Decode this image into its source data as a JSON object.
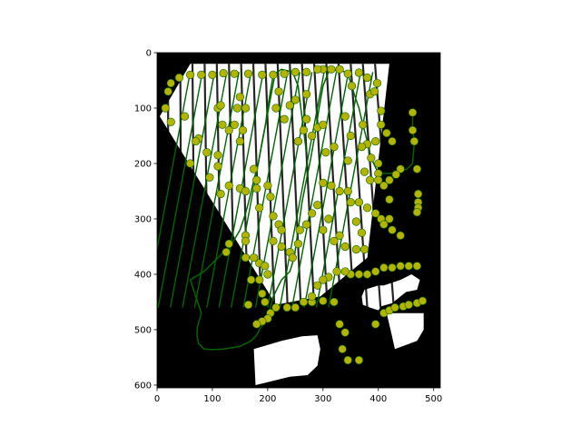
{
  "chart_data": {
    "type": "scatter",
    "title": "",
    "xlabel": "",
    "ylabel": "",
    "xlim": [
      0,
      512
    ],
    "ylim": [
      605,
      0
    ],
    "x_ticks": [
      0,
      100,
      200,
      300,
      400,
      500
    ],
    "y_ticks": [
      0,
      100,
      200,
      300,
      400,
      500,
      600
    ],
    "background_color": "#000000",
    "mask_color": "#ffffff",
    "path_color": "#006400",
    "marker_color": "#b4b400",
    "grid": false,
    "legend": "none",
    "mask_regions": [
      [
        [
          60,
          20
        ],
        [
          420,
          20
        ],
        [
          380,
          370
        ],
        [
          295,
          440
        ],
        [
          215,
          455
        ],
        [
          5,
          115
        ]
      ],
      [
        [
          175,
          535
        ],
        [
          225,
          520
        ],
        [
          262,
          512
        ],
        [
          290,
          510
        ],
        [
          295,
          535
        ],
        [
          290,
          565
        ],
        [
          272,
          582
        ],
        [
          240,
          585
        ],
        [
          178,
          600
        ]
      ],
      [
        [
          415,
          470
        ],
        [
          482,
          470
        ],
        [
          482,
          500
        ],
        [
          470,
          520
        ],
        [
          430,
          535
        ],
        [
          422,
          500
        ]
      ],
      [
        [
          370,
          440
        ],
        [
          375,
          428
        ],
        [
          400,
          420
        ],
        [
          410,
          420
        ],
        [
          440,
          410
        ],
        [
          460,
          400
        ],
        [
          475,
          410
        ],
        [
          470,
          428
        ],
        [
          450,
          432
        ],
        [
          440,
          440
        ],
        [
          425,
          452
        ],
        [
          405,
          458
        ],
        [
          400,
          465
        ],
        [
          385,
          460
        ],
        [
          372,
          455
        ]
      ]
    ],
    "path": [
      [
        462,
        108
      ],
      [
        462,
        140
      ],
      [
        465,
        160
      ],
      [
        462,
        200
      ],
      [
        452,
        210
      ],
      [
        435,
        215
      ],
      [
        420,
        218
      ],
      [
        400,
        218
      ],
      [
        387,
        190
      ],
      [
        380,
        160
      ],
      [
        372,
        130
      ],
      [
        365,
        100
      ],
      [
        358,
        80
      ],
      [
        352,
        60
      ],
      [
        345,
        38
      ],
      [
        330,
        30
      ],
      [
        310,
        35
      ],
      [
        300,
        60
      ],
      [
        293,
        100
      ],
      [
        285,
        150
      ],
      [
        278,
        190
      ],
      [
        270,
        230
      ],
      [
        262,
        270
      ],
      [
        255,
        320
      ],
      [
        248,
        370
      ],
      [
        240,
        395
      ],
      [
        225,
        410
      ],
      [
        210,
        440
      ],
      [
        205,
        460
      ],
      [
        200,
        475
      ],
      [
        192,
        490
      ],
      [
        185,
        500
      ],
      [
        180,
        510
      ],
      [
        175,
        515
      ],
      [
        170,
        520
      ],
      [
        160,
        525
      ],
      [
        150,
        530
      ],
      [
        120,
        535
      ],
      [
        100,
        536
      ],
      [
        85,
        535
      ],
      [
        75,
        525
      ],
      [
        72,
        510
      ],
      [
        73,
        495
      ],
      [
        80,
        470
      ],
      [
        70,
        440
      ],
      [
        60,
        410
      ],
      [
        85,
        395
      ],
      [
        100,
        380
      ],
      [
        120,
        360
      ],
      [
        135,
        345
      ],
      [
        150,
        320
      ],
      [
        160,
        290
      ],
      [
        168,
        260
      ],
      [
        175,
        230
      ],
      [
        183,
        200
      ],
      [
        190,
        160
      ],
      [
        196,
        130
      ],
      [
        200,
        100
      ],
      [
        205,
        70
      ],
      [
        210,
        40
      ],
      [
        225,
        30
      ],
      [
        245,
        35
      ],
      [
        255,
        60
      ],
      [
        260,
        100
      ],
      [
        265,
        140
      ],
      [
        270,
        180
      ]
    ],
    "waypoints": [
      [
        462,
        108
      ],
      [
        462,
        140
      ],
      [
        465,
        160
      ],
      [
        470,
        210
      ],
      [
        472,
        255
      ],
      [
        472,
        270
      ],
      [
        472,
        280
      ],
      [
        470,
        288
      ],
      [
        440,
        210
      ],
      [
        432,
        220
      ],
      [
        420,
        230
      ],
      [
        400,
        218
      ],
      [
        387,
        190
      ],
      [
        395,
        160
      ],
      [
        380,
        165
      ],
      [
        372,
        130
      ],
      [
        405,
        105
      ],
      [
        385,
        75
      ],
      [
        393,
        70
      ],
      [
        398,
        55
      ],
      [
        380,
        45
      ],
      [
        365,
        36
      ],
      [
        352,
        60
      ],
      [
        345,
        38
      ],
      [
        330,
        30
      ],
      [
        315,
        30
      ],
      [
        300,
        30
      ],
      [
        290,
        30
      ],
      [
        270,
        35
      ],
      [
        250,
        35
      ],
      [
        230,
        38
      ],
      [
        210,
        40
      ],
      [
        190,
        40
      ],
      [
        165,
        38
      ],
      [
        140,
        38
      ],
      [
        120,
        37
      ],
      [
        100,
        40
      ],
      [
        80,
        40
      ],
      [
        60,
        40
      ],
      [
        40,
        45
      ],
      [
        25,
        55
      ],
      [
        20,
        70
      ],
      [
        15,
        100
      ],
      [
        25,
        125
      ],
      [
        50,
        115
      ],
      [
        75,
        155
      ],
      [
        70,
        160
      ],
      [
        60,
        200
      ],
      [
        90,
        180
      ],
      [
        110,
        185
      ],
      [
        110,
        205
      ],
      [
        95,
        225
      ],
      [
        115,
        255
      ],
      [
        130,
        240
      ],
      [
        150,
        245
      ],
      [
        160,
        250
      ],
      [
        180,
        245
      ],
      [
        185,
        280
      ],
      [
        160,
        330
      ],
      [
        160,
        340
      ],
      [
        130,
        345
      ],
      [
        125,
        360
      ],
      [
        160,
        370
      ],
      [
        175,
        370
      ],
      [
        185,
        380
      ],
      [
        195,
        385
      ],
      [
        200,
        400
      ],
      [
        170,
        410
      ],
      [
        185,
        410
      ],
      [
        190,
        435
      ],
      [
        195,
        450
      ],
      [
        205,
        470
      ],
      [
        200,
        480
      ],
      [
        190,
        485
      ],
      [
        180,
        490
      ],
      [
        165,
        455
      ],
      [
        215,
        460
      ],
      [
        235,
        460
      ],
      [
        250,
        460
      ],
      [
        265,
        450
      ],
      [
        280,
        450
      ],
      [
        300,
        448
      ],
      [
        320,
        450
      ],
      [
        330,
        490
      ],
      [
        340,
        505
      ],
      [
        335,
        535
      ],
      [
        345,
        555
      ],
      [
        365,
        555
      ],
      [
        395,
        490
      ],
      [
        410,
        470
      ],
      [
        420,
        465
      ],
      [
        430,
        460
      ],
      [
        445,
        458
      ],
      [
        455,
        455
      ],
      [
        470,
        452
      ],
      [
        480,
        448
      ],
      [
        470,
        385
      ],
      [
        455,
        385
      ],
      [
        440,
        385
      ],
      [
        425,
        388
      ],
      [
        410,
        388
      ],
      [
        395,
        395
      ],
      [
        380,
        400
      ],
      [
        365,
        400
      ],
      [
        350,
        400
      ],
      [
        340,
        395
      ],
      [
        325,
        395
      ],
      [
        310,
        405
      ],
      [
        300,
        410
      ],
      [
        290,
        420
      ],
      [
        280,
        440
      ],
      [
        150,
        160
      ],
      [
        155,
        140
      ],
      [
        140,
        130
      ],
      [
        145,
        100
      ],
      [
        160,
        100
      ],
      [
        150,
        80
      ],
      [
        110,
        100
      ],
      [
        115,
        95
      ],
      [
        118,
        130
      ],
      [
        130,
        140
      ],
      [
        175,
        210
      ],
      [
        180,
        230
      ],
      [
        200,
        240
      ],
      [
        205,
        260
      ],
      [
        210,
        295
      ],
      [
        220,
        310
      ],
      [
        225,
        320
      ],
      [
        210,
        340
      ],
      [
        225,
        350
      ],
      [
        240,
        360
      ],
      [
        245,
        370
      ],
      [
        255,
        345
      ],
      [
        258,
        320
      ],
      [
        270,
        310
      ],
      [
        280,
        290
      ],
      [
        290,
        275
      ],
      [
        300,
        235
      ],
      [
        315,
        240
      ],
      [
        330,
        250
      ],
      [
        345,
        250
      ],
      [
        350,
        270
      ],
      [
        365,
        270
      ],
      [
        380,
        280
      ],
      [
        395,
        290
      ],
      [
        405,
        300
      ],
      [
        420,
        300
      ],
      [
        410,
        310
      ],
      [
        425,
        320
      ],
      [
        440,
        330
      ],
      [
        360,
        305
      ],
      [
        370,
        325
      ],
      [
        300,
        320
      ],
      [
        310,
        300
      ],
      [
        320,
        340
      ],
      [
        330,
        330
      ],
      [
        340,
        350
      ],
      [
        360,
        355
      ],
      [
        375,
        355
      ],
      [
        280,
        150
      ],
      [
        290,
        135
      ],
      [
        300,
        130
      ],
      [
        305,
        180
      ],
      [
        320,
        170
      ],
      [
        345,
        195
      ],
      [
        255,
        160
      ],
      [
        265,
        140
      ],
      [
        270,
        120
      ],
      [
        230,
        120
      ],
      [
        240,
        95
      ],
      [
        250,
        85
      ],
      [
        270,
        75
      ],
      [
        220,
        70
      ],
      [
        215,
        100
      ],
      [
        340,
        115
      ],
      [
        350,
        150
      ],
      [
        370,
        170
      ],
      [
        375,
        215
      ],
      [
        385,
        230
      ],
      [
        400,
        230
      ],
      [
        410,
        240
      ],
      [
        420,
        265
      ],
      [
        405,
        130
      ],
      [
        415,
        145
      ],
      [
        425,
        160
      ],
      [
        400,
        200
      ]
    ]
  }
}
